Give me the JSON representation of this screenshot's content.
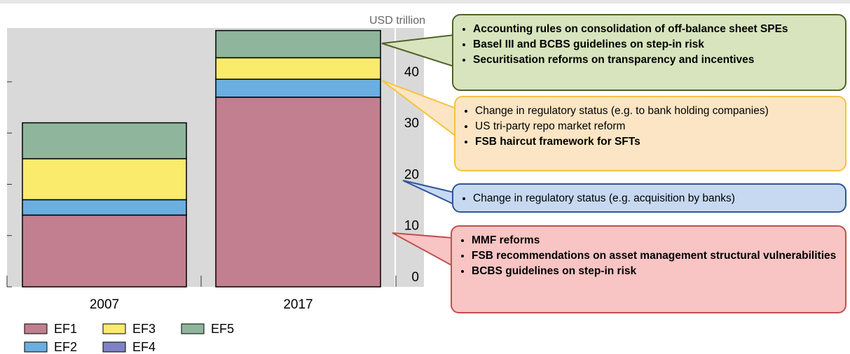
{
  "chart_data": {
    "type": "bar",
    "stacked": true,
    "axis_label": "USD trillion",
    "categories": [
      "2007",
      "2017"
    ],
    "series": [
      {
        "name": "EF1",
        "color": "#c17f8f",
        "values": [
          14,
          37
        ]
      },
      {
        "name": "EF2",
        "color": "#6baee0",
        "values": [
          3,
          3.5
        ]
      },
      {
        "name": "EF3",
        "color": "#fbeb6c",
        "values": [
          8,
          4.2
        ]
      },
      {
        "name": "EF4",
        "color": "#7f82c4",
        "values": [
          null,
          null
        ]
      },
      {
        "name": "EF5",
        "color": "#8fb59d",
        "values": [
          7,
          5.3
        ]
      }
    ],
    "ylim": [
      0,
      50.5
    ],
    "yticks": [
      0,
      10,
      20,
      30,
      40
    ],
    "grid": false,
    "annotations": [
      {
        "color": "#d7e4bd",
        "border": "#4f6228",
        "items": [
          {
            "text": "Accounting rules on consolidation of off-balance sheet SPEs",
            "bold": true
          },
          {
            "text": "Basel III and BCBS guidelines on step-in risk",
            "bold": true
          },
          {
            "text": "Securitisation reforms on transparency and incentives",
            "bold": true
          }
        ]
      },
      {
        "color": "#fbe5c4",
        "border": "#f6c242",
        "items": [
          {
            "text": "Change in regulatory status (e.g. to bank holding companies)",
            "bold": false
          },
          {
            "text": "US tri-party repo market reform",
            "bold": false
          },
          {
            "text": "FSB haircut framework for SFTs",
            "bold": true
          }
        ]
      },
      {
        "color": "#c6d9f1",
        "border": "#2e5597",
        "items": [
          {
            "text": "Change in regulatory status (e.g. acquisition by banks)",
            "bold": false
          }
        ]
      },
      {
        "color": "#f8c4c4",
        "border": "#c0504d",
        "items": [
          {
            "text": "MMF reforms",
            "bold": true
          },
          {
            "text": "FSB recommendations on asset management structural vulnerabilities",
            "bold": true
          },
          {
            "text": "BCBS guidelines on step-in risk",
            "bold": true
          }
        ]
      }
    ]
  }
}
